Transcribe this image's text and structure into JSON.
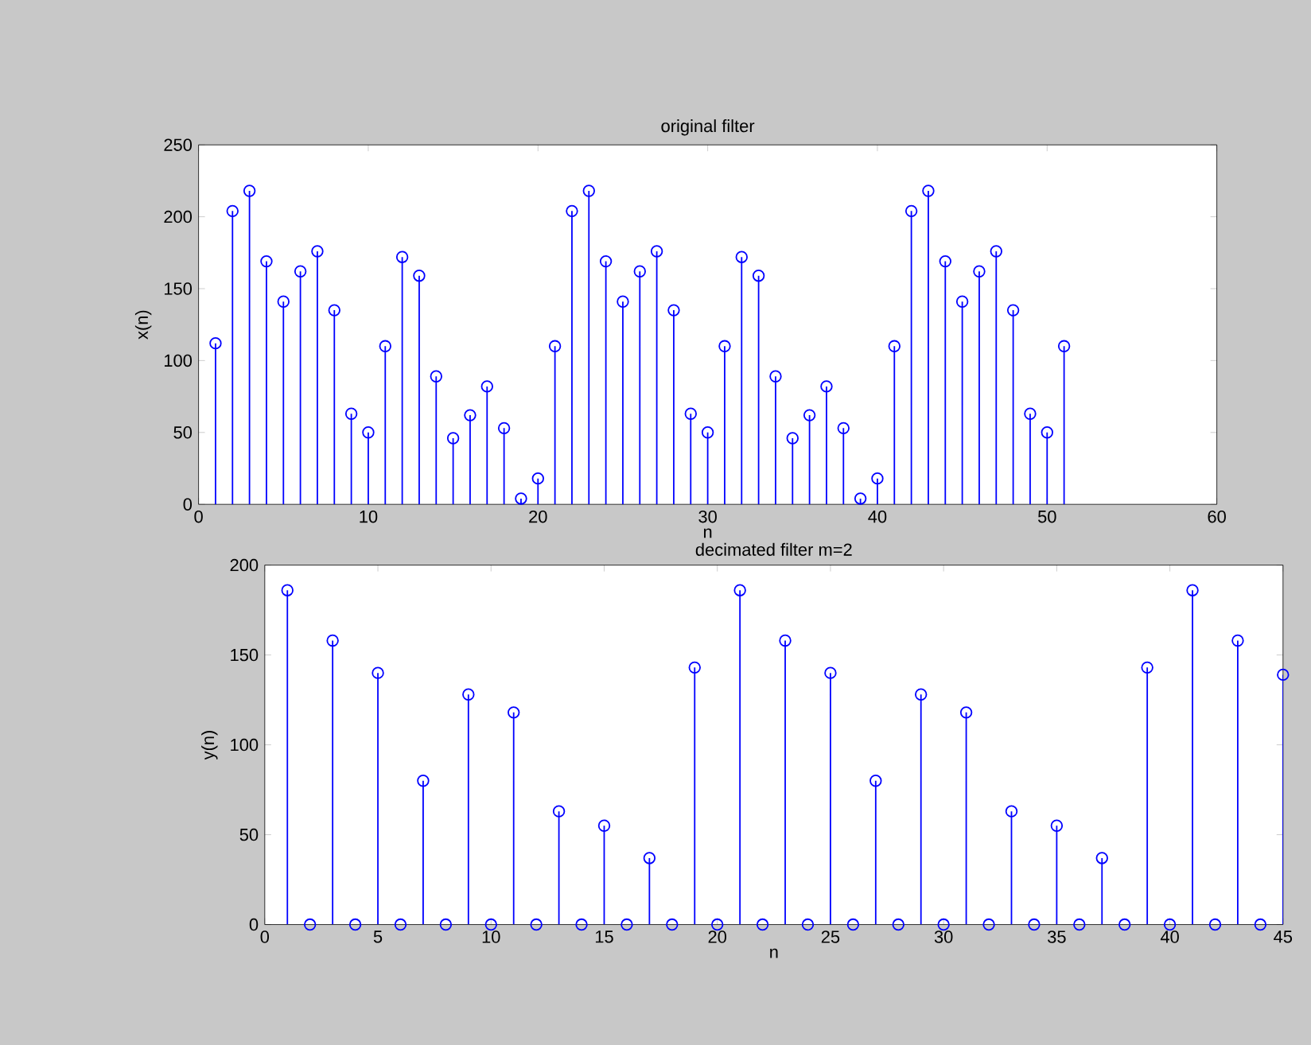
{
  "chart_data": [
    {
      "type": "lollipop",
      "title": "original filter",
      "xlabel": "n",
      "ylabel": "x(n)",
      "x": [
        1,
        2,
        3,
        4,
        5,
        6,
        7,
        8,
        9,
        10,
        11,
        12,
        13,
        14,
        15,
        16,
        17,
        18,
        19,
        20,
        21,
        22,
        23,
        24,
        25,
        26,
        27,
        28,
        29,
        30,
        31,
        32,
        33,
        34,
        35,
        36,
        37,
        38,
        39,
        40,
        41,
        42,
        43,
        44,
        45,
        46,
        47,
        48,
        49,
        50,
        51
      ],
      "values": [
        112,
        204,
        218,
        169,
        141,
        162,
        176,
        135,
        63,
        50,
        110,
        172,
        159,
        89,
        46,
        62,
        82,
        53,
        4,
        18,
        110,
        204,
        218,
        169,
        141,
        162,
        176,
        135,
        63,
        50,
        110,
        172,
        159,
        89,
        46,
        62,
        82,
        53,
        4,
        18,
        110,
        204,
        218,
        169,
        141,
        162,
        176,
        135,
        63,
        50,
        110
      ],
      "color": "#0000ff",
      "marker": "circle",
      "line_style": "solid",
      "xlim": [
        0,
        60
      ],
      "xticks": [
        0,
        10,
        20,
        30,
        40,
        50,
        60
      ],
      "ylim": [
        0,
        250
      ],
      "yticks": [
        0,
        50,
        100,
        150,
        200,
        250
      ]
    },
    {
      "type": "lollipop",
      "title": "decimated filter m=2",
      "xlabel": "n",
      "ylabel": "y(n)",
      "x": [
        1,
        2,
        3,
        4,
        5,
        6,
        7,
        8,
        9,
        10,
        11,
        12,
        13,
        14,
        15,
        16,
        17,
        18,
        19,
        20,
        21,
        22,
        23,
        24,
        25,
        26,
        27,
        28,
        29,
        30,
        31,
        32,
        33,
        34,
        35,
        36,
        37,
        38,
        39,
        40,
        41,
        42,
        43,
        44,
        45
      ],
      "values": [
        186,
        0,
        158,
        0,
        140,
        0,
        80,
        0,
        128,
        0,
        118,
        0,
        63,
        0,
        55,
        0,
        37,
        0,
        143,
        0,
        186,
        0,
        158,
        0,
        140,
        0,
        80,
        0,
        128,
        0,
        118,
        0,
        63,
        0,
        55,
        0,
        37,
        0,
        143,
        0,
        186,
        0,
        158,
        0,
        139
      ],
      "color": "#0000ff",
      "marker": "circle",
      "line_style": "solid",
      "xlim": [
        0,
        45
      ],
      "xticks": [
        0,
        5,
        10,
        15,
        20,
        25,
        30,
        35,
        40,
        45
      ],
      "ylim": [
        0,
        200
      ],
      "yticks": [
        0,
        50,
        100,
        150,
        200
      ]
    }
  ]
}
